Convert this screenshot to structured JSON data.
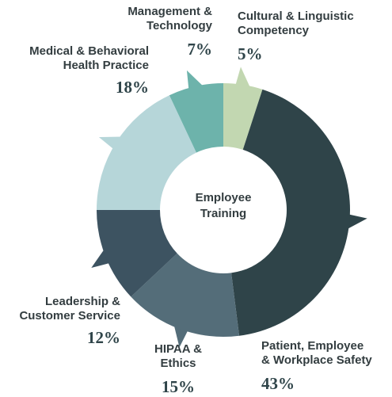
{
  "chart_data": {
    "type": "donut",
    "center_label": "Employee\nTraining",
    "categories": [
      "Cultural & Linguistic\nCompetency",
      "Patient, Employee\n& Workplace Safety",
      "HIPAA &\nEthics",
      "Leadership &\nCustomer Service",
      "Medical & Behavioral\nHealth Practice",
      "Management &\nTechnology"
    ],
    "values": [
      5,
      43,
      15,
      12,
      18,
      7
    ],
    "value_labels": [
      "5%",
      "43%",
      "15%",
      "12%",
      "18%",
      "7%"
    ],
    "colors": [
      "#c2d7b1",
      "#2f4449",
      "#546d79",
      "#3d5361",
      "#b6d6d9",
      "#6db3ab"
    ]
  }
}
